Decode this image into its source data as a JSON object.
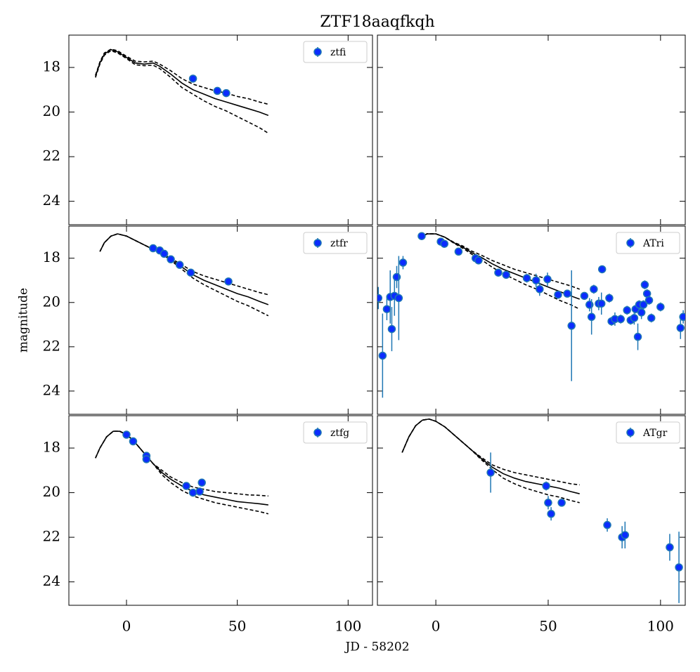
{
  "title": "ZTF18aaqfkqh",
  "x_label": "JD - 58202",
  "y_label": "magnitude",
  "chart_data": [
    {
      "type": "scatter",
      "legend": "upper right",
      "xlim": [
        -26,
        111
      ],
      "ylim": [
        25.05,
        16.55
      ],
      "xticks": [
        0,
        50,
        100
      ],
      "yticks": [
        18,
        20,
        22,
        24
      ],
      "series": [
        {
          "name": "ztfi",
          "color": "#1f77b4",
          "marker_color": "#0b2cff",
          "x": [
            30,
            41,
            45
          ],
          "values": [
            18.5,
            19.05,
            19.15
          ],
          "errors": [
            0.05,
            0.05,
            0.05
          ]
        }
      ],
      "models": [
        {
          "style": "solid",
          "color": "#000000",
          "x": [
            -14,
            -12,
            -10,
            -7,
            -4,
            0,
            4,
            8,
            12,
            15,
            20,
            25,
            30,
            35,
            40,
            45,
            50,
            55,
            60,
            64
          ],
          "values": [
            18.4,
            17.8,
            17.4,
            17.2,
            17.3,
            17.55,
            17.8,
            17.85,
            17.8,
            17.95,
            18.3,
            18.7,
            19.0,
            19.2,
            19.4,
            19.55,
            19.7,
            19.85,
            20.0,
            20.15
          ]
        },
        {
          "style": "dashed",
          "color": "#000000",
          "x": [
            -14,
            -12,
            -10,
            -7,
            -4,
            0,
            4,
            8,
            12,
            15,
            20,
            25,
            30,
            35,
            40,
            45,
            50,
            55,
            60,
            64
          ],
          "values": [
            18.35,
            17.75,
            17.35,
            17.18,
            17.25,
            17.5,
            17.72,
            17.75,
            17.72,
            17.85,
            18.15,
            18.5,
            18.75,
            18.9,
            19.05,
            19.15,
            19.3,
            19.4,
            19.55,
            19.65
          ]
        },
        {
          "style": "dashed",
          "color": "#000000",
          "x": [
            -14,
            -12,
            -10,
            -7,
            -4,
            0,
            4,
            8,
            12,
            15,
            20,
            25,
            30,
            35,
            40,
            45,
            50,
            55,
            60,
            64
          ],
          "values": [
            18.45,
            17.85,
            17.45,
            17.25,
            17.35,
            17.6,
            17.88,
            17.92,
            17.9,
            18.05,
            18.45,
            18.9,
            19.2,
            19.5,
            19.75,
            19.95,
            20.2,
            20.45,
            20.7,
            20.95
          ]
        }
      ]
    },
    {
      "type": "scatter",
      "xlim": [
        -26,
        111
      ],
      "ylim": [
        25.05,
        16.55
      ],
      "xticks": [
        0,
        50,
        100
      ],
      "yticks": [
        18,
        20,
        22,
        24
      ],
      "series": [],
      "models": []
    },
    {
      "type": "scatter",
      "legend": "upper right",
      "xlim": [
        -26,
        111
      ],
      "ylim": [
        25.05,
        16.55
      ],
      "xticks": [
        0,
        50,
        100
      ],
      "yticks": [
        18,
        20,
        22,
        24
      ],
      "series": [
        {
          "name": "ztfr",
          "color": "#1f77b4",
          "marker_color": "#0b2cff",
          "x": [
            12,
            15,
            17,
            20,
            24,
            29,
            46
          ],
          "values": [
            17.55,
            17.65,
            17.8,
            18.05,
            18.3,
            18.65,
            19.05
          ],
          "errors": [
            0.05,
            0.05,
            0.05,
            0.05,
            0.05,
            0.05,
            0.05
          ]
        }
      ],
      "models": [
        {
          "style": "solid",
          "color": "#000000",
          "x": [
            -12,
            -10,
            -7,
            -4,
            0,
            4,
            8,
            12,
            16,
            20,
            25,
            30,
            35,
            40,
            45,
            50,
            55,
            60,
            64
          ],
          "values": [
            17.7,
            17.3,
            17.0,
            16.9,
            17.0,
            17.2,
            17.4,
            17.6,
            17.8,
            18.05,
            18.4,
            18.75,
            19.0,
            19.2,
            19.4,
            19.6,
            19.75,
            19.95,
            20.1
          ]
        },
        {
          "style": "dashed",
          "color": "#000000",
          "x": [
            -12,
            -10,
            -7,
            -4,
            0,
            4,
            8,
            12,
            16,
            20,
            25,
            30,
            35,
            40,
            45,
            50,
            55,
            60,
            64
          ],
          "values": [
            17.7,
            17.3,
            17.0,
            16.9,
            17.0,
            17.2,
            17.4,
            17.6,
            17.8,
            18.0,
            18.3,
            18.6,
            18.8,
            18.95,
            19.1,
            19.25,
            19.4,
            19.55,
            19.65
          ]
        },
        {
          "style": "dashed",
          "color": "#000000",
          "x": [
            -12,
            -10,
            -7,
            -4,
            0,
            4,
            8,
            12,
            16,
            20,
            25,
            30,
            35,
            40,
            45,
            50,
            55,
            60,
            64
          ],
          "values": [
            17.7,
            17.3,
            17.0,
            16.9,
            17.0,
            17.2,
            17.4,
            17.6,
            17.8,
            18.1,
            18.5,
            18.9,
            19.2,
            19.45,
            19.7,
            19.95,
            20.15,
            20.4,
            20.6
          ]
        }
      ]
    },
    {
      "type": "scatter",
      "legend": "upper right",
      "xlim": [
        -26,
        111
      ],
      "ylim": [
        25.05,
        16.55
      ],
      "xticks": [
        0,
        50,
        100
      ],
      "yticks": [
        18,
        20,
        22,
        24
      ],
      "series": [
        {
          "name": "ATri",
          "color": "#1f77b4",
          "marker_color": "#0b2cff",
          "x": [
            -25.6,
            -23.7,
            -21.8,
            -20.3,
            -19.6,
            -18.4,
            -17.4,
            -16.5,
            -14.6,
            -6.3,
            2.2,
            3.8,
            10.1,
            17.7,
            19,
            27.8,
            31.3,
            40.5,
            44.6,
            46.2,
            49.7,
            54.4,
            58.5,
            60.4,
            66.1,
            68.4,
            69.3,
            70.3,
            72.5,
            73.7,
            74,
            77.2,
            78.2,
            79.7,
            82.3,
            85.1,
            86.7,
            88.3,
            88.9,
            89.9,
            90.5,
            91.5,
            92.4,
            93,
            94,
            94.9,
            95.9,
            100,
            108.9,
            110.1
          ],
          "values": [
            19.8,
            22.4,
            20.3,
            19.75,
            21.2,
            19.7,
            18.85,
            19.8,
            18.2,
            17.0,
            17.25,
            17.35,
            17.7,
            18.0,
            18.1,
            18.65,
            18.75,
            18.9,
            19.0,
            19.4,
            18.95,
            19.65,
            19.6,
            21.05,
            19.7,
            20.1,
            20.65,
            19.4,
            20.05,
            20.05,
            18.5,
            19.8,
            20.85,
            20.75,
            20.75,
            20.35,
            20.8,
            20.7,
            20.3,
            21.55,
            20.1,
            20.45,
            20.1,
            19.2,
            19.6,
            19.9,
            20.7,
            20.2,
            21.15,
            20.65
          ],
          "errors": [
            0.5,
            1.9,
            0.5,
            1.2,
            1.0,
            0.9,
            0.5,
            1.9,
            0.3,
            0.1,
            0.1,
            0.1,
            0.1,
            0.1,
            0.1,
            0.1,
            0.1,
            0.2,
            0.3,
            0.3,
            0.3,
            0.1,
            0.1,
            2.5,
            0.1,
            0.3,
            0.8,
            0.2,
            0.3,
            0.5,
            0.1,
            0.2,
            0.2,
            0.3,
            0.2,
            0.2,
            0.2,
            0.3,
            0.2,
            0.6,
            0.2,
            0.3,
            0.2,
            0.2,
            0.2,
            0.2,
            0.2,
            0.2,
            0.5,
            0.3
          ]
        }
      ],
      "models": [
        {
          "style": "solid",
          "color": "#000000",
          "x": [
            -7,
            -4,
            0,
            4,
            8,
            12,
            16,
            20,
            25,
            30,
            35,
            40,
            45,
            50,
            55,
            60,
            64
          ],
          "values": [
            17.1,
            16.9,
            16.9,
            17.05,
            17.3,
            17.5,
            17.75,
            17.95,
            18.25,
            18.5,
            18.7,
            18.9,
            19.1,
            19.3,
            19.5,
            19.7,
            19.85
          ]
        },
        {
          "style": "dashed",
          "color": "#000000",
          "x": [
            -7,
            -4,
            0,
            4,
            8,
            12,
            16,
            20,
            25,
            30,
            35,
            40,
            45,
            50,
            55,
            60,
            64
          ],
          "values": [
            17.1,
            16.9,
            16.9,
            17.05,
            17.28,
            17.45,
            17.68,
            17.85,
            18.1,
            18.3,
            18.5,
            18.65,
            18.8,
            18.95,
            19.1,
            19.25,
            19.4
          ]
        },
        {
          "style": "dashed",
          "color": "#000000",
          "x": [
            -7,
            -4,
            0,
            4,
            8,
            12,
            16,
            20,
            25,
            30,
            35,
            40,
            45,
            50,
            55,
            60,
            64
          ],
          "values": [
            17.1,
            16.9,
            16.9,
            17.05,
            17.32,
            17.55,
            17.82,
            18.05,
            18.4,
            18.7,
            18.95,
            19.2,
            19.4,
            19.65,
            19.9,
            20.1,
            20.3
          ]
        }
      ]
    },
    {
      "type": "scatter",
      "legend": "upper right",
      "xlim": [
        -26,
        111
      ],
      "ylim": [
        25.05,
        16.55
      ],
      "xticks": [
        0,
        50,
        100
      ],
      "yticks": [
        18,
        20,
        22,
        24
      ],
      "series": [
        {
          "name": "ztfg",
          "color": "#1f77b4",
          "marker_color": "#0b2cff",
          "x": [
            0,
            3,
            9,
            9,
            27,
            30,
            33,
            34
          ],
          "values": [
            17.4,
            17.7,
            18.35,
            18.5,
            19.7,
            20.0,
            19.95,
            19.55
          ],
          "errors": [
            0.05,
            0.05,
            0.05,
            0.05,
            0.05,
            0.05,
            0.05,
            0.05
          ]
        }
      ],
      "models": [
        {
          "style": "solid",
          "color": "#000000",
          "x": [
            -14,
            -12,
            -9,
            -6,
            -3,
            0,
            3,
            6,
            9,
            12,
            16,
            20,
            25,
            30,
            35,
            40,
            45,
            50,
            55,
            60,
            64
          ],
          "values": [
            18.45,
            18.0,
            17.5,
            17.25,
            17.25,
            17.4,
            17.65,
            18.0,
            18.35,
            18.7,
            19.1,
            19.4,
            19.7,
            19.95,
            20.1,
            20.2,
            20.3,
            20.4,
            20.45,
            20.5,
            20.55
          ]
        },
        {
          "style": "dashed",
          "color": "#000000",
          "x": [
            -14,
            -12,
            -9,
            -6,
            -3,
            0,
            3,
            6,
            9,
            12,
            16,
            20,
            25,
            30,
            35,
            40,
            45,
            50,
            55,
            60,
            64
          ],
          "values": [
            18.45,
            18.0,
            17.5,
            17.25,
            17.25,
            17.4,
            17.65,
            18.0,
            18.35,
            18.7,
            19.0,
            19.3,
            19.55,
            19.75,
            19.85,
            19.95,
            20.0,
            20.05,
            20.1,
            20.12,
            20.15
          ]
        },
        {
          "style": "dashed",
          "color": "#000000",
          "x": [
            -14,
            -12,
            -9,
            -6,
            -3,
            0,
            3,
            6,
            9,
            12,
            16,
            20,
            25,
            30,
            35,
            40,
            45,
            50,
            55,
            60,
            64
          ],
          "values": [
            18.45,
            18.0,
            17.5,
            17.25,
            17.25,
            17.4,
            17.65,
            18.0,
            18.35,
            18.7,
            19.2,
            19.55,
            19.9,
            20.15,
            20.3,
            20.45,
            20.55,
            20.65,
            20.75,
            20.85,
            20.95
          ]
        }
      ]
    },
    {
      "type": "scatter",
      "legend": "upper right",
      "xlim": [
        -26,
        111
      ],
      "ylim": [
        25.05,
        16.55
      ],
      "xticks": [
        0,
        50,
        100
      ],
      "yticks": [
        18,
        20,
        22,
        24
      ],
      "series": [
        {
          "name": "ATgr",
          "color": "#1f77b4",
          "marker_color": "#0b2cff",
          "x": [
            24.4,
            49.1,
            50,
            51.3,
            56,
            76.3,
            82.9,
            84.2,
            104.1,
            108.2
          ],
          "values": [
            19.1,
            19.7,
            20.45,
            20.95,
            20.45,
            21.45,
            22.0,
            21.9,
            22.45,
            23.35
          ],
          "errors": [
            0.9,
            0.2,
            0.3,
            0.3,
            0.15,
            0.3,
            0.5,
            0.6,
            0.6,
            1.6
          ]
        }
      ],
      "models": [
        {
          "style": "solid",
          "color": "#000000",
          "x": [
            -15,
            -12,
            -9,
            -6,
            -3,
            0,
            4,
            8,
            12,
            16,
            20,
            25,
            30,
            35,
            40,
            45,
            50,
            55,
            60,
            64
          ],
          "values": [
            18.2,
            17.5,
            17.0,
            16.75,
            16.7,
            16.8,
            17.05,
            17.4,
            17.75,
            18.1,
            18.45,
            18.85,
            19.15,
            19.35,
            19.5,
            19.6,
            19.7,
            19.8,
            19.95,
            20.05
          ]
        },
        {
          "style": "dashed",
          "color": "#000000",
          "x": [
            -15,
            -12,
            -9,
            -6,
            -3,
            0,
            4,
            8,
            12,
            16,
            20,
            25,
            30,
            35,
            40,
            45,
            50,
            55,
            60,
            64
          ],
          "values": [
            18.2,
            17.5,
            17.0,
            16.75,
            16.7,
            16.8,
            17.05,
            17.4,
            17.75,
            18.1,
            18.4,
            18.75,
            18.95,
            19.1,
            19.2,
            19.3,
            19.4,
            19.5,
            19.6,
            19.65
          ]
        },
        {
          "style": "dashed",
          "color": "#000000",
          "x": [
            -15,
            -12,
            -9,
            -6,
            -3,
            0,
            4,
            8,
            12,
            16,
            20,
            25,
            30,
            35,
            40,
            45,
            50,
            55,
            60,
            64
          ],
          "values": [
            18.2,
            17.5,
            17.0,
            16.75,
            16.7,
            16.8,
            17.05,
            17.4,
            17.75,
            18.1,
            18.5,
            18.95,
            19.35,
            19.6,
            19.8,
            19.95,
            20.1,
            20.2,
            20.35,
            20.45
          ]
        }
      ]
    }
  ]
}
